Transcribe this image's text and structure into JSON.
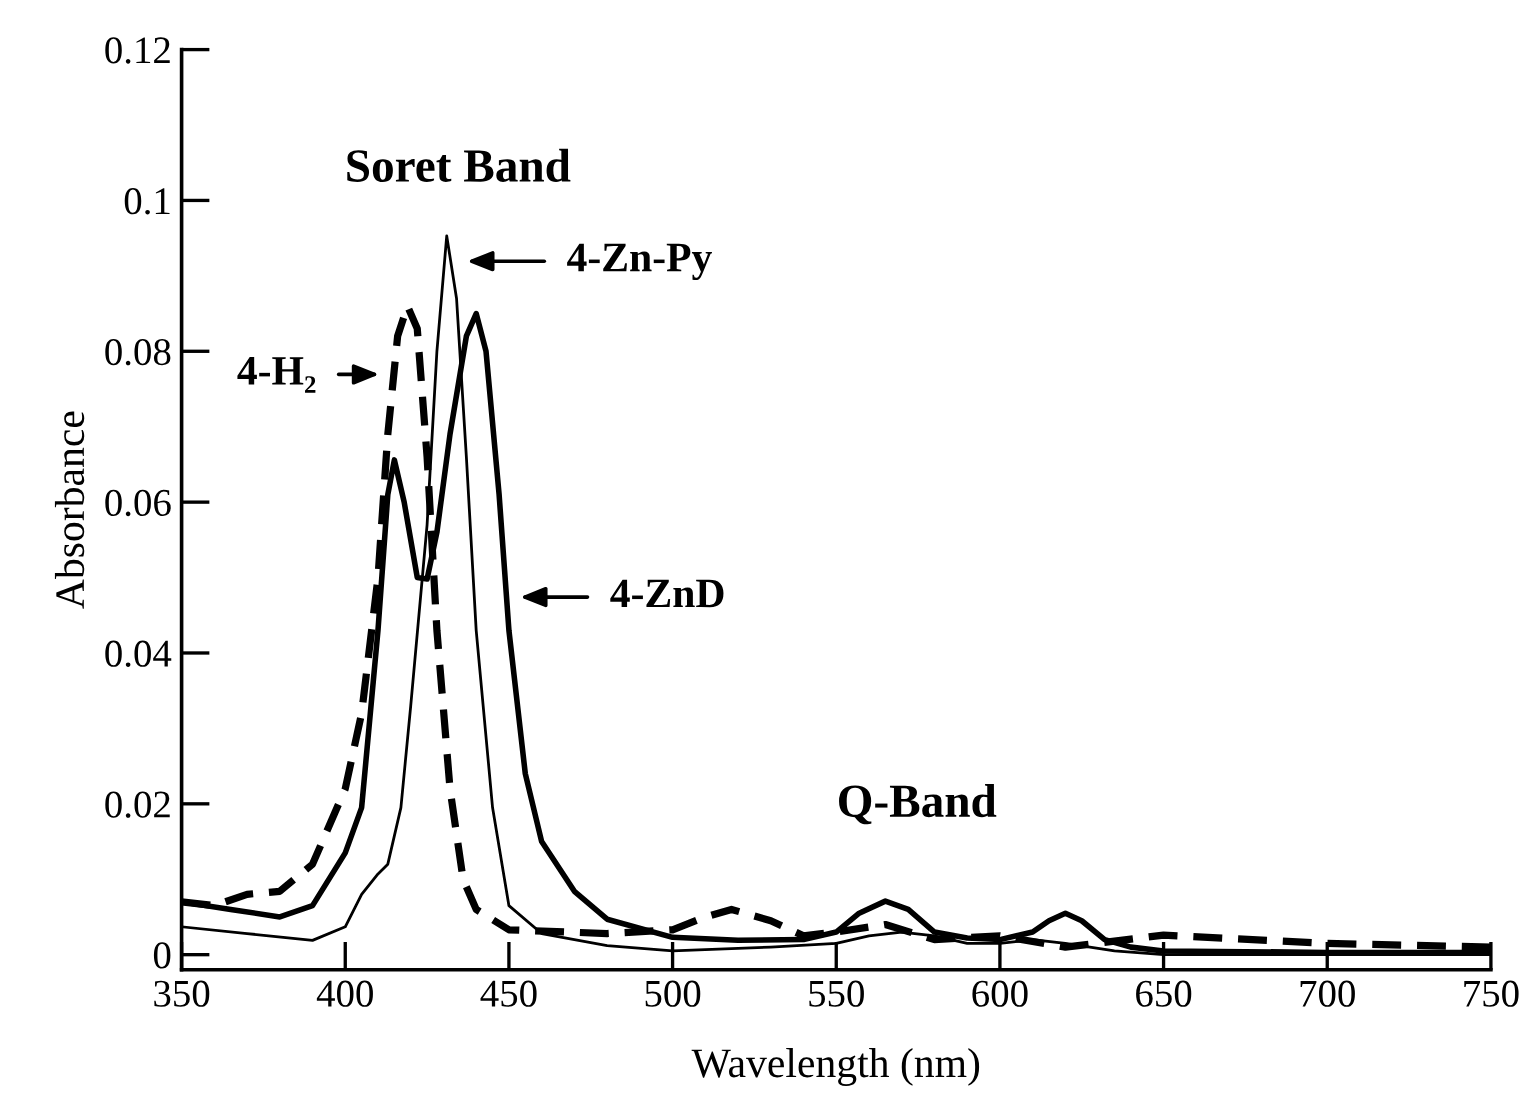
{
  "chart_data": {
    "type": "line",
    "xlabel": "Wavelength (nm)",
    "ylabel": "Absorbance",
    "xlim": [
      350,
      750
    ],
    "xticks": [
      350,
      400,
      450,
      500,
      550,
      600,
      650,
      700,
      750
    ],
    "ylim": [
      -0.002,
      0.12
    ],
    "yticks": [
      0,
      0.02,
      0.04,
      0.06,
      0.08,
      0.1,
      0.12
    ],
    "grid": false,
    "legend": false,
    "series": [
      {
        "color": "#000000",
        "line_style": "solid",
        "x": [
          350,
          370,
          390,
          400,
          405,
          410,
          413,
          417,
          420,
          425,
          428,
          431,
          434,
          437,
          440,
          445,
          450,
          460,
          480,
          500,
          530,
          550,
          560,
          570,
          580,
          590,
          600,
          610,
          620,
          635,
          650,
          700,
          750
        ],
        "values": [
          0.0037,
          0.0028,
          0.0019,
          0.0037,
          0.008,
          0.0107,
          0.012,
          0.0195,
          0.033,
          0.057,
          0.08,
          0.0953,
          0.087,
          0.066,
          0.043,
          0.0195,
          0.0065,
          0.0028,
          0.0012,
          0.0005,
          0.001,
          0.0015,
          0.0025,
          0.003,
          0.0025,
          0.0015,
          0.0015,
          0.002,
          0.0015,
          0.0005,
          0,
          0,
          0
        ]
      },
      {
        "color": "#000000",
        "line_style": "solid",
        "x": [
          350,
          365,
          380,
          390,
          400,
          405,
          410,
          413,
          415,
          418,
          422,
          425,
          428,
          432,
          437,
          440,
          443,
          447,
          450,
          455,
          460,
          470,
          480,
          500,
          520,
          540,
          550,
          557,
          565,
          572,
          580,
          590,
          600,
          610,
          615,
          620,
          625,
          632,
          640,
          650,
          700,
          750
        ],
        "values": [
          0.007,
          0.006,
          0.005,
          0.0065,
          0.0135,
          0.0195,
          0.043,
          0.061,
          0.0656,
          0.06,
          0.05,
          0.0498,
          0.056,
          0.069,
          0.082,
          0.085,
          0.08,
          0.061,
          0.043,
          0.024,
          0.015,
          0.0084,
          0.0047,
          0.0023,
          0.0019,
          0.002,
          0.003,
          0.0055,
          0.0071,
          0.006,
          0.003,
          0.0022,
          0.002,
          0.003,
          0.0045,
          0.0055,
          0.0045,
          0.002,
          0.001,
          0.0005,
          0.0003,
          0.0003
        ]
      },
      {
        "color": "#000000",
        "line_style": "dashed",
        "x": [
          350,
          360,
          370,
          380,
          390,
          400,
          405,
          410,
          413,
          416,
          419,
          422,
          425,
          428,
          432,
          436,
          440,
          450,
          480,
          500,
          510,
          518,
          530,
          540,
          550,
          565,
          580,
          600,
          620,
          650,
          700,
          750
        ],
        "values": [
          0.007,
          0.0065,
          0.008,
          0.0084,
          0.012,
          0.022,
          0.032,
          0.05,
          0.069,
          0.082,
          0.086,
          0.083,
          0.066,
          0.043,
          0.022,
          0.01,
          0.006,
          0.0033,
          0.0028,
          0.0033,
          0.005,
          0.006,
          0.0045,
          0.0025,
          0.003,
          0.004,
          0.002,
          0.0025,
          0.001,
          0.0026,
          0.0015,
          0.001
        ]
      }
    ],
    "annotations": [
      "Soret Band",
      "4-Zn-Py",
      "4-H₂",
      "4-ZnD",
      "Q-Band"
    ]
  }
}
